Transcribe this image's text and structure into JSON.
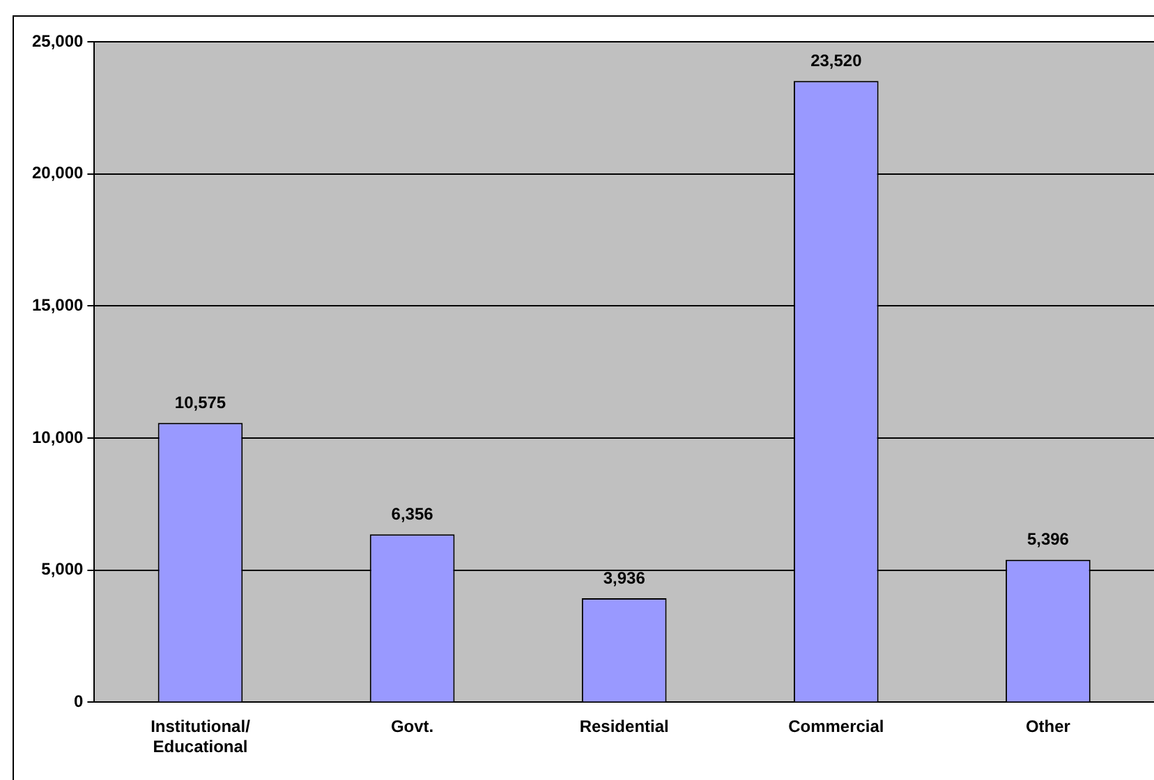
{
  "chart_data": {
    "type": "bar",
    "categories": [
      "Institutional/Educational",
      "Govt.",
      "Residential",
      "Commercial",
      "Other"
    ],
    "values": [
      10575,
      6356,
      3936,
      23520,
      5396
    ],
    "value_labels": [
      "10,575",
      "6,356",
      "3,936",
      "23,520",
      "5,396"
    ],
    "color": "#9999ff",
    "ylim": [
      0,
      25000
    ],
    "yticks": [
      {
        "value": 0,
        "label": "0"
      },
      {
        "value": 5000,
        "label": "5,000"
      },
      {
        "value": 10000,
        "label": "10,000"
      },
      {
        "value": 15000,
        "label": "15,000"
      },
      {
        "value": 20000,
        "label": "20,000"
      },
      {
        "value": 25000,
        "label": "25,000"
      }
    ],
    "grid": "y",
    "legend": false
  }
}
